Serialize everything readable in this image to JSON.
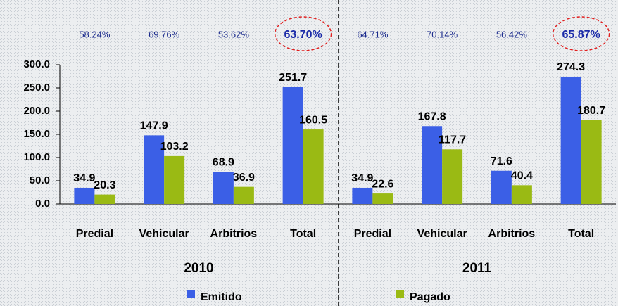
{
  "chart_data": {
    "type": "bar",
    "groups": [
      "2010",
      "2011"
    ],
    "categories": [
      "Predial",
      "Vehicular",
      "Arbitrios",
      "Total",
      "Predial",
      "Vehicular",
      "Arbitrios",
      "Total"
    ],
    "ratio_labels": [
      "58.24%",
      "69.76%",
      "53.62%",
      "63.70%",
      "64.71%",
      "70.14%",
      "56.42%",
      "65.87%"
    ],
    "series": [
      {
        "name": "Emitido",
        "color": "#3b5fe6",
        "values": [
          34.9,
          147.9,
          68.9,
          251.7,
          34.9,
          167.8,
          71.6,
          274.3
        ]
      },
      {
        "name": "Pagado",
        "color": "#9aba14",
        "values": [
          20.3,
          103.2,
          36.9,
          160.5,
          22.6,
          117.7,
          40.4,
          180.7
        ]
      }
    ],
    "ylim": [
      0,
      300
    ],
    "yticks": [
      {
        "value": 0,
        "label": "0.0"
      },
      {
        "value": 50,
        "label": "50.0"
      },
      {
        "value": 100,
        "label": "100.0"
      },
      {
        "value": 150,
        "label": "150.0"
      },
      {
        "value": 200,
        "label": "200.0"
      },
      {
        "value": 250,
        "label": "250.0"
      },
      {
        "value": 300,
        "label": "300.0"
      }
    ]
  }
}
